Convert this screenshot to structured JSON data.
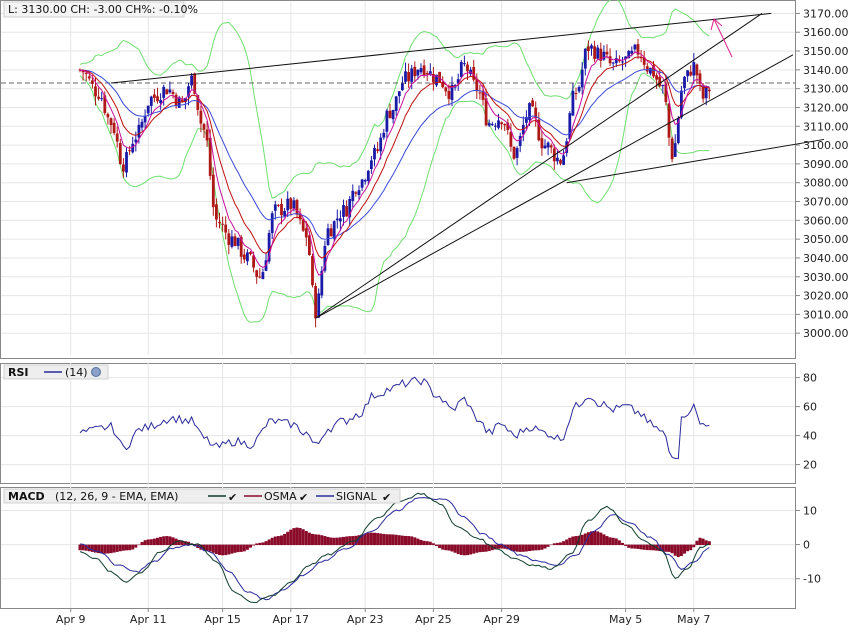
{
  "colors": {
    "bull": "#1a1aa8",
    "bear": "#b01818",
    "ema_fast": "#c8109a",
    "ema_mid": "#c01010",
    "ema_slow": "#3a4ad8",
    "bands": "#6fe06f",
    "rsi": "#2a2a9a",
    "macd": "#0f3d2e",
    "signal": "#2a2a9a",
    "osma": "#8a0a2a",
    "arrow": "#e0208a"
  },
  "chart_data": [
    {
      "type": "candlestick",
      "panel": "price",
      "header": "L: 3130.00 CH: -3.00 CH%: -0.10%",
      "ylim": [
        2990,
        3175
      ],
      "yticks": [
        "3000.00",
        "3010.00",
        "3020.00",
        "3030.00",
        "3040.00",
        "3050.00",
        "3060.00",
        "3070.00",
        "3080.00",
        "3090.00",
        "3100.00",
        "3110.00",
        "3120.00",
        "3130.00",
        "3140.00",
        "3150.00",
        "3160.00",
        "3170.00"
      ],
      "xticks": [
        "Apr 9",
        "Apr 11",
        "Apr 15",
        "Apr 17",
        "Apr 23",
        "Apr 25",
        "Apr 29",
        "May 5",
        "May 7"
      ],
      "reference_line": 3133,
      "anchors": [
        {
          "d": 0.0,
          "v": 3140
        },
        {
          "d": 0.6,
          "v": 3128
        },
        {
          "d": 1.0,
          "v": 3112
        },
        {
          "d": 1.4,
          "v": 3090
        },
        {
          "d": 1.8,
          "v": 3105
        },
        {
          "d": 2.3,
          "v": 3125
        },
        {
          "d": 2.8,
          "v": 3130
        },
        {
          "d": 3.3,
          "v": 3122
        },
        {
          "d": 3.6,
          "v": 3135
        },
        {
          "d": 4.0,
          "v": 3108
        },
        {
          "d": 4.4,
          "v": 3060
        },
        {
          "d": 4.9,
          "v": 3050
        },
        {
          "d": 5.4,
          "v": 3040
        },
        {
          "d": 5.8,
          "v": 3030
        },
        {
          "d": 6.3,
          "v": 3065
        },
        {
          "d": 6.8,
          "v": 3068
        },
        {
          "d": 7.3,
          "v": 3052
        },
        {
          "d": 7.6,
          "v": 3012
        },
        {
          "d": 8.0,
          "v": 3055
        },
        {
          "d": 8.5,
          "v": 3065
        },
        {
          "d": 9.0,
          "v": 3080
        },
        {
          "d": 9.5,
          "v": 3095
        },
        {
          "d": 10.0,
          "v": 3118
        },
        {
          "d": 10.5,
          "v": 3135
        },
        {
          "d": 11.0,
          "v": 3142
        },
        {
          "d": 11.5,
          "v": 3136
        },
        {
          "d": 12.0,
          "v": 3128
        },
        {
          "d": 12.4,
          "v": 3142
        },
        {
          "d": 12.8,
          "v": 3130
        },
        {
          "d": 13.2,
          "v": 3112
        },
        {
          "d": 13.6,
          "v": 3115
        },
        {
          "d": 14.0,
          "v": 3095
        },
        {
          "d": 14.5,
          "v": 3118
        },
        {
          "d": 15.0,
          "v": 3100
        },
        {
          "d": 15.5,
          "v": 3092
        },
        {
          "d": 16.0,
          "v": 3128
        },
        {
          "d": 16.4,
          "v": 3152
        },
        {
          "d": 16.8,
          "v": 3148
        },
        {
          "d": 17.2,
          "v": 3142
        },
        {
          "d": 17.6,
          "v": 3145
        },
        {
          "d": 18.0,
          "v": 3150
        },
        {
          "d": 18.4,
          "v": 3140
        },
        {
          "d": 18.8,
          "v": 3130
        },
        {
          "d": 19.1,
          "v": 3095
        },
        {
          "d": 19.5,
          "v": 3135
        },
        {
          "d": 19.8,
          "v": 3142
        },
        {
          "d": 20.1,
          "v": 3125
        },
        {
          "d": 20.3,
          "v": 3130
        }
      ],
      "trendlines": [
        {
          "from": [
            1.0,
            3133
          ],
          "to": [
            22.3,
            3170
          ]
        },
        {
          "from": [
            7.6,
            3008
          ],
          "to": [
            22.0,
            3170
          ]
        },
        {
          "from": [
            7.6,
            3008
          ],
          "to": [
            23.0,
            3148
          ]
        },
        {
          "from": [
            15.7,
            3080
          ],
          "to": [
            24.0,
            3103
          ]
        }
      ]
    },
    {
      "type": "line",
      "panel": "rsi",
      "title": "RSI",
      "legend": [
        {
          "name": "(14)",
          "color": "#2a2a9a"
        }
      ],
      "ylim": [
        8,
        88
      ],
      "yticks": [
        "20",
        "40",
        "60",
        "80"
      ],
      "anchors": [
        {
          "d": 0.0,
          "v": 42
        },
        {
          "d": 1.0,
          "v": 46
        },
        {
          "d": 1.4,
          "v": 32
        },
        {
          "d": 2.0,
          "v": 45
        },
        {
          "d": 3.0,
          "v": 52
        },
        {
          "d": 3.6,
          "v": 50
        },
        {
          "d": 4.0,
          "v": 38
        },
        {
          "d": 4.4,
          "v": 32
        },
        {
          "d": 5.0,
          "v": 36
        },
        {
          "d": 5.5,
          "v": 34
        },
        {
          "d": 6.2,
          "v": 50
        },
        {
          "d": 6.8,
          "v": 48
        },
        {
          "d": 7.3,
          "v": 42
        },
        {
          "d": 7.6,
          "v": 33
        },
        {
          "d": 8.0,
          "v": 45
        },
        {
          "d": 8.5,
          "v": 50
        },
        {
          "d": 9.0,
          "v": 55
        },
        {
          "d": 9.5,
          "v": 68
        },
        {
          "d": 10.0,
          "v": 72
        },
        {
          "d": 10.5,
          "v": 76
        },
        {
          "d": 11.0,
          "v": 78
        },
        {
          "d": 11.5,
          "v": 68
        },
        {
          "d": 12.0,
          "v": 58
        },
        {
          "d": 12.4,
          "v": 65
        },
        {
          "d": 12.8,
          "v": 52
        },
        {
          "d": 13.2,
          "v": 42
        },
        {
          "d": 13.6,
          "v": 48
        },
        {
          "d": 14.0,
          "v": 40
        },
        {
          "d": 14.5,
          "v": 46
        },
        {
          "d": 15.0,
          "v": 42
        },
        {
          "d": 15.5,
          "v": 38
        },
        {
          "d": 16.0,
          "v": 60
        },
        {
          "d": 16.4,
          "v": 68
        },
        {
          "d": 16.8,
          "v": 62
        },
        {
          "d": 17.2,
          "v": 58
        },
        {
          "d": 17.6,
          "v": 60
        },
        {
          "d": 18.0,
          "v": 56
        },
        {
          "d": 18.4,
          "v": 48
        },
        {
          "d": 18.8,
          "v": 42
        },
        {
          "d": 19.1,
          "v": 25
        },
        {
          "d": 19.5,
          "v": 55
        },
        {
          "d": 19.8,
          "v": 60
        },
        {
          "d": 20.0,
          "v": 48
        },
        {
          "d": 20.3,
          "v": 49
        }
      ]
    },
    {
      "type": "line+bar",
      "panel": "macd",
      "title": "MACD",
      "params": "(12, 26, 9 - EMA, EMA)",
      "legend": [
        {
          "name": "",
          "color": "#0f3d2e"
        },
        {
          "name": "OSMA",
          "color": "#8a0a2a"
        },
        {
          "name": "SIGNAL",
          "color": "#2a2a9a"
        }
      ],
      "ylim": [
        -18,
        16
      ],
      "yticks": [
        "10",
        "0",
        "-10"
      ],
      "macd": [
        {
          "d": 0.0,
          "v": -2
        },
        {
          "d": 0.5,
          "v": -4
        },
        {
          "d": 1.0,
          "v": -8
        },
        {
          "d": 1.5,
          "v": -11
        },
        {
          "d": 2.0,
          "v": -8
        },
        {
          "d": 2.6,
          "v": -2
        },
        {
          "d": 3.2,
          "v": 1
        },
        {
          "d": 3.8,
          "v": 0
        },
        {
          "d": 4.4,
          "v": -5
        },
        {
          "d": 5.0,
          "v": -14
        },
        {
          "d": 5.6,
          "v": -17
        },
        {
          "d": 6.2,
          "v": -15
        },
        {
          "d": 6.8,
          "v": -11
        },
        {
          "d": 7.4,
          "v": -6
        },
        {
          "d": 8.0,
          "v": -3
        },
        {
          "d": 8.8,
          "v": 1
        },
        {
          "d": 9.6,
          "v": 8
        },
        {
          "d": 10.4,
          "v": 13
        },
        {
          "d": 11.0,
          "v": 15
        },
        {
          "d": 11.6,
          "v": 12
        },
        {
          "d": 12.2,
          "v": 5
        },
        {
          "d": 12.8,
          "v": 2
        },
        {
          "d": 13.4,
          "v": -1
        },
        {
          "d": 14.0,
          "v": -4
        },
        {
          "d": 14.6,
          "v": -6
        },
        {
          "d": 15.2,
          "v": -7
        },
        {
          "d": 15.8,
          "v": -3
        },
        {
          "d": 16.4,
          "v": 7
        },
        {
          "d": 17.0,
          "v": 11
        },
        {
          "d": 17.6,
          "v": 6
        },
        {
          "d": 18.2,
          "v": 1
        },
        {
          "d": 18.8,
          "v": -2
        },
        {
          "d": 19.2,
          "v": -10
        },
        {
          "d": 19.6,
          "v": -7
        },
        {
          "d": 20.0,
          "v": -1
        },
        {
          "d": 20.3,
          "v": 0
        }
      ],
      "signal": [
        {
          "d": 0.0,
          "v": 0
        },
        {
          "d": 0.6,
          "v": -2
        },
        {
          "d": 1.2,
          "v": -6
        },
        {
          "d": 1.8,
          "v": -8
        },
        {
          "d": 2.4,
          "v": -5
        },
        {
          "d": 3.0,
          "v": -1
        },
        {
          "d": 3.6,
          "v": 0
        },
        {
          "d": 4.2,
          "v": -2
        },
        {
          "d": 4.8,
          "v": -8
        },
        {
          "d": 5.4,
          "v": -14
        },
        {
          "d": 6.0,
          "v": -16
        },
        {
          "d": 6.6,
          "v": -13
        },
        {
          "d": 7.2,
          "v": -9
        },
        {
          "d": 7.8,
          "v": -5
        },
        {
          "d": 8.6,
          "v": -1
        },
        {
          "d": 9.4,
          "v": 4
        },
        {
          "d": 10.2,
          "v": 10
        },
        {
          "d": 11.0,
          "v": 14
        },
        {
          "d": 11.8,
          "v": 13
        },
        {
          "d": 12.4,
          "v": 8
        },
        {
          "d": 13.0,
          "v": 3
        },
        {
          "d": 13.6,
          "v": 0
        },
        {
          "d": 14.2,
          "v": -3
        },
        {
          "d": 14.8,
          "v": -5
        },
        {
          "d": 15.4,
          "v": -6
        },
        {
          "d": 16.0,
          "v": -3
        },
        {
          "d": 16.6,
          "v": 4
        },
        {
          "d": 17.2,
          "v": 9
        },
        {
          "d": 17.8,
          "v": 6
        },
        {
          "d": 18.4,
          "v": 2
        },
        {
          "d": 19.0,
          "v": -3
        },
        {
          "d": 19.4,
          "v": -7
        },
        {
          "d": 19.8,
          "v": -5
        },
        {
          "d": 20.3,
          "v": -1
        }
      ],
      "osma": [
        {
          "d": 0.0,
          "v": -1.5
        },
        {
          "d": 0.8,
          "v": -2.5
        },
        {
          "d": 1.6,
          "v": -1.5
        },
        {
          "d": 2.2,
          "v": 1.5
        },
        {
          "d": 2.8,
          "v": 2.5
        },
        {
          "d": 3.4,
          "v": 1.0
        },
        {
          "d": 4.0,
          "v": -1.5
        },
        {
          "d": 4.6,
          "v": -3.0
        },
        {
          "d": 5.2,
          "v": -2.0
        },
        {
          "d": 5.8,
          "v": 0.5
        },
        {
          "d": 6.4,
          "v": 2.5
        },
        {
          "d": 7.0,
          "v": 5.0
        },
        {
          "d": 7.6,
          "v": 3.0
        },
        {
          "d": 8.2,
          "v": 2.0
        },
        {
          "d": 8.8,
          "v": 2.5
        },
        {
          "d": 9.4,
          "v": 3.5
        },
        {
          "d": 10.0,
          "v": 3.0
        },
        {
          "d": 10.6,
          "v": 2.5
        },
        {
          "d": 11.2,
          "v": 1.0
        },
        {
          "d": 11.8,
          "v": -1.5
        },
        {
          "d": 12.4,
          "v": -3.0
        },
        {
          "d": 13.0,
          "v": -2.0
        },
        {
          "d": 13.6,
          "v": -1.0
        },
        {
          "d": 14.2,
          "v": -2.0
        },
        {
          "d": 14.8,
          "v": -1.5
        },
        {
          "d": 15.4,
          "v": 0.5
        },
        {
          "d": 16.0,
          "v": 2.5
        },
        {
          "d": 16.6,
          "v": 4.0
        },
        {
          "d": 17.2,
          "v": 2.0
        },
        {
          "d": 17.8,
          "v": -1.0
        },
        {
          "d": 18.4,
          "v": -1.5
        },
        {
          "d": 19.0,
          "v": -2.0
        },
        {
          "d": 19.3,
          "v": -3.5
        },
        {
          "d": 19.7,
          "v": -1.5
        },
        {
          "d": 20.0,
          "v": 2.0
        },
        {
          "d": 20.3,
          "v": 1.0
        }
      ]
    }
  ]
}
